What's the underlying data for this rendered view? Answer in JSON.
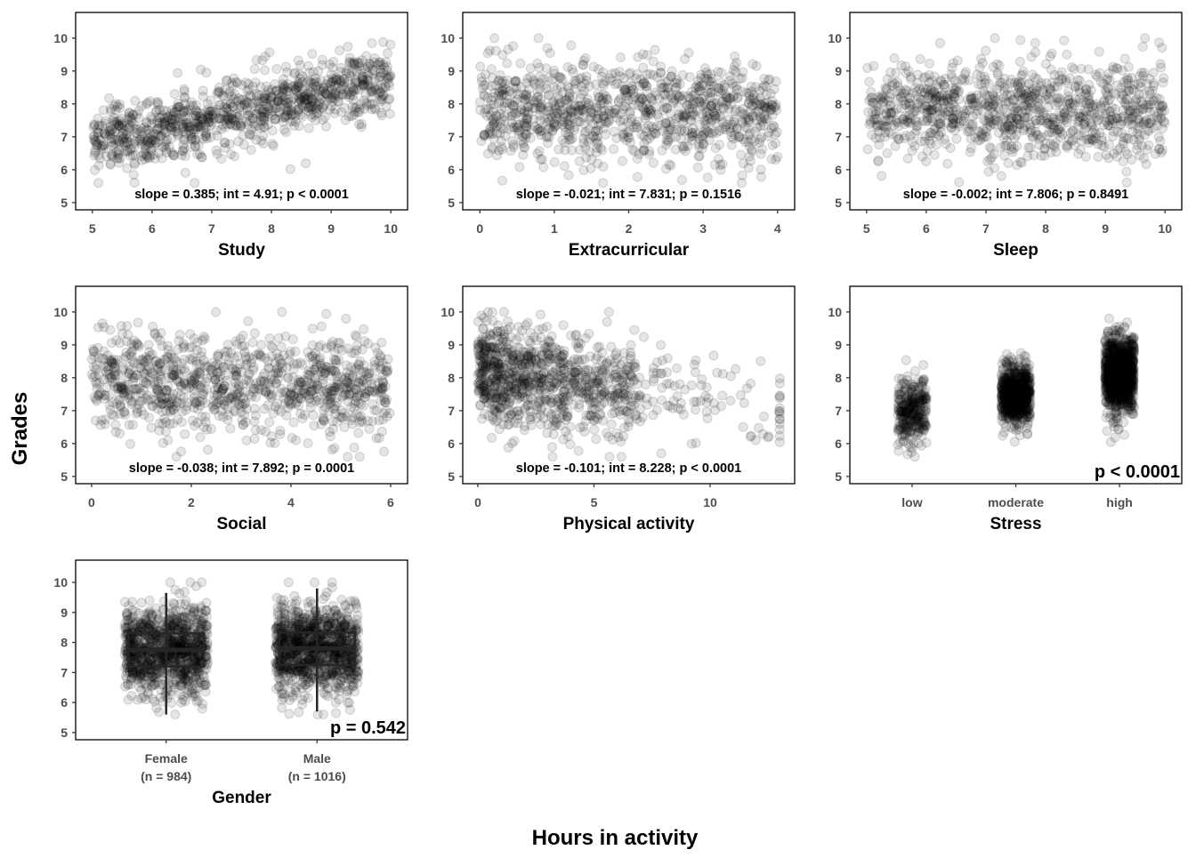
{
  "y_axis_label": "Grades",
  "x_axis_label": "Hours in activity",
  "chart_data": [
    {
      "type": "scatter",
      "xlabel": "Study",
      "xlim": [
        4.72,
        10.28
      ],
      "ylim": [
        4.78,
        10.78
      ],
      "xticks": [
        5,
        6,
        7,
        8,
        9,
        10
      ],
      "yticks": [
        5,
        6,
        7,
        8,
        9,
        10
      ],
      "x_range": [
        5,
        10
      ],
      "slope": 0.385,
      "intercept": 4.91,
      "annotation": "slope = 0.385; int = 4.91; p < 0.0001"
    },
    {
      "type": "scatter",
      "xlabel": "Extracurricular",
      "xlim": [
        -0.23,
        4.23
      ],
      "ylim": [
        4.78,
        10.78
      ],
      "xticks": [
        0,
        1,
        2,
        3,
        4
      ],
      "yticks": [
        5,
        6,
        7,
        8,
        9,
        10
      ],
      "x_range": [
        0,
        4
      ],
      "slope": -0.021,
      "intercept": 7.831,
      "annotation": "slope = -0.021; int = 7.831; p = 0.1516"
    },
    {
      "type": "scatter",
      "xlabel": "Sleep",
      "xlim": [
        4.72,
        10.28
      ],
      "ylim": [
        4.78,
        10.78
      ],
      "xticks": [
        5,
        6,
        7,
        8,
        9,
        10
      ],
      "yticks": [
        5,
        6,
        7,
        8,
        9,
        10
      ],
      "x_range": [
        5,
        10
      ],
      "slope": -0.002,
      "intercept": 7.806,
      "annotation": "slope = -0.002; int = 7.806; p = 0.8491"
    },
    {
      "type": "scatter",
      "xlabel": "Social",
      "xlim": [
        -0.32,
        6.34
      ],
      "ylim": [
        4.78,
        10.78
      ],
      "xticks": [
        0,
        2,
        4,
        6
      ],
      "yticks": [
        5,
        6,
        7,
        8,
        9,
        10
      ],
      "x_range": [
        0,
        6
      ],
      "slope": -0.038,
      "intercept": 7.892,
      "annotation": "slope = -0.038; int = 7.892; p = 0.0001"
    },
    {
      "type": "scatter",
      "xlabel": "Physical activity",
      "xlim": [
        -0.65,
        13.64
      ],
      "ylim": [
        4.78,
        10.78
      ],
      "xticks": [
        0,
        5,
        10
      ],
      "yticks": [
        5,
        6,
        7,
        8,
        9,
        10
      ],
      "x_range": [
        0,
        13
      ],
      "slope": -0.101,
      "intercept": 8.228,
      "annotation": "slope = -0.101; int = 8.228; p < 0.0001"
    },
    {
      "type": "scatter",
      "xlabel": "Stress",
      "categories": [
        "low",
        "moderate",
        "high"
      ],
      "xlim": [
        0.4,
        3.6
      ],
      "ylim": [
        4.78,
        10.78
      ],
      "yticks": [
        5,
        6,
        7,
        8,
        9,
        10
      ],
      "group_centers": [
        7.0,
        7.5,
        8.1
      ],
      "annotation": "p < 0.0001"
    },
    {
      "type": "box",
      "xlabel": "Gender",
      "categories": [
        "Female",
        "Male"
      ],
      "category_counts": [
        "(n = 984)",
        "(n = 1016)"
      ],
      "xlim": [
        0.4,
        2.6
      ],
      "ylim": [
        4.76,
        10.74
      ],
      "yticks": [
        5,
        6,
        7,
        8,
        9,
        10
      ],
      "boxes": [
        {
          "q1": 7.2,
          "median": 7.75,
          "q3": 8.3,
          "min": 5.6,
          "max": 9.65
        },
        {
          "q1": 7.25,
          "median": 7.8,
          "q3": 8.33,
          "min": 5.7,
          "max": 9.8
        }
      ],
      "annotation": "p = 0.542"
    }
  ],
  "colors": {
    "point": "#000000",
    "frame": "#000000",
    "box": "#262626"
  }
}
